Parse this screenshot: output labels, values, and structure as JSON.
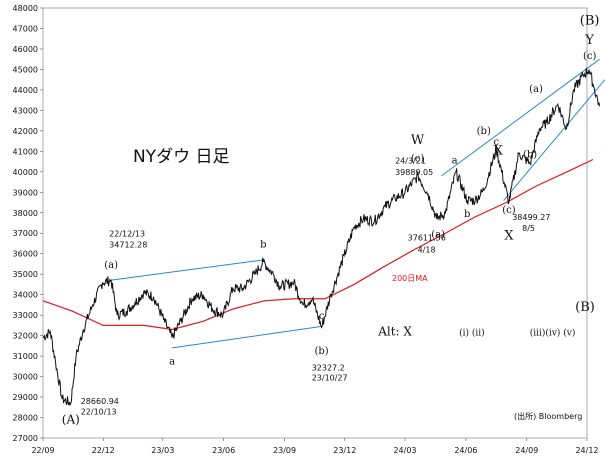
{
  "chart_data": {
    "type": "line",
    "title": "NYダウ 日足",
    "source": "(出所) Bloomberg",
    "ylim": [
      27000,
      48000
    ],
    "ytick_step": 1000,
    "x_range": [
      "2022-09-01",
      "2024-12-01"
    ],
    "x_tick_labels": [
      "22/09",
      "22/12",
      "23/03",
      "23/06",
      "23/09",
      "23/12",
      "24/03",
      "24/06",
      "24/09",
      "24/12"
    ],
    "x_tick_dates": [
      "2022-09-01",
      "2022-12-01",
      "2023-03-01",
      "2023-06-01",
      "2023-09-01",
      "2023-12-01",
      "2024-03-01",
      "2024-06-01",
      "2024-09-01",
      "2024-12-01"
    ],
    "grid": false,
    "colors": {
      "price": "#111111",
      "ma": "#e0191e",
      "channel": "#2a86d4"
    },
    "series": [
      {
        "kind": "price",
        "points": [
          [
            "2022-09-01",
            31900
          ],
          [
            "2022-09-12",
            32200
          ],
          [
            "2022-09-20",
            30700
          ],
          [
            "2022-09-30",
            28900
          ],
          [
            "2022-10-13",
            28700
          ],
          [
            "2022-10-21",
            31000
          ],
          [
            "2022-11-01",
            32300
          ],
          [
            "2022-11-15",
            33500
          ],
          [
            "2022-11-30",
            34600
          ],
          [
            "2022-12-13",
            34700
          ],
          [
            "2022-12-22",
            33000
          ],
          [
            "2023-01-05",
            33200
          ],
          [
            "2023-01-18",
            33600
          ],
          [
            "2023-01-31",
            34100
          ],
          [
            "2023-02-15",
            33900
          ],
          [
            "2023-03-02",
            32800
          ],
          [
            "2023-03-15",
            31900
          ],
          [
            "2023-03-28",
            32700
          ],
          [
            "2023-04-14",
            33800
          ],
          [
            "2023-05-01",
            34000
          ],
          [
            "2023-05-15",
            33300
          ],
          [
            "2023-05-31",
            33000
          ],
          [
            "2023-06-15",
            34300
          ],
          [
            "2023-06-30",
            34300
          ],
          [
            "2023-07-18",
            35000
          ],
          [
            "2023-07-31",
            35600
          ],
          [
            "2023-08-15",
            35000
          ],
          [
            "2023-08-25",
            34400
          ],
          [
            "2023-09-15",
            34600
          ],
          [
            "2023-09-29",
            33500
          ],
          [
            "2023-10-13",
            33800
          ],
          [
            "2023-10-27",
            32400
          ],
          [
            "2023-11-10",
            34000
          ],
          [
            "2023-11-30",
            35900
          ],
          [
            "2023-12-15",
            37300
          ],
          [
            "2023-12-29",
            37700
          ],
          [
            "2024-01-15",
            37600
          ],
          [
            "2024-01-31",
            38300
          ],
          [
            "2024-02-15",
            38700
          ],
          [
            "2024-03-01",
            39000
          ],
          [
            "2024-03-21",
            39800
          ],
          [
            "2024-04-05",
            38900
          ],
          [
            "2024-04-18",
            37700
          ],
          [
            "2024-05-01",
            38000
          ],
          [
            "2024-05-17",
            40000
          ],
          [
            "2024-06-03",
            38600
          ],
          [
            "2024-06-15",
            38600
          ],
          [
            "2024-06-28",
            39100
          ],
          [
            "2024-07-17",
            41100
          ],
          [
            "2024-08-05",
            38500
          ],
          [
            "2024-08-20",
            40900
          ],
          [
            "2024-09-06",
            40400
          ],
          [
            "2024-09-20",
            42100
          ],
          [
            "2024-10-01",
            42400
          ],
          [
            "2024-10-18",
            43300
          ],
          [
            "2024-10-31",
            42100
          ],
          [
            "2024-11-11",
            44000
          ],
          [
            "2024-11-25",
            44700
          ],
          [
            "2024-12-04",
            45000
          ],
          [
            "2024-12-10",
            44300
          ],
          [
            "2024-12-20",
            43200
          ]
        ]
      },
      {
        "kind": "ma",
        "name": "200日MA",
        "points": [
          [
            "2022-09-01",
            33700
          ],
          [
            "2022-10-15",
            33200
          ],
          [
            "2022-12-01",
            32500
          ],
          [
            "2023-02-01",
            32500
          ],
          [
            "2023-03-15",
            32300
          ],
          [
            "2023-05-01",
            32700
          ],
          [
            "2023-06-15",
            33300
          ],
          [
            "2023-08-01",
            33700
          ],
          [
            "2023-09-15",
            33800
          ],
          [
            "2023-11-01",
            33800
          ],
          [
            "2023-12-15",
            34500
          ],
          [
            "2024-01-31",
            35400
          ],
          [
            "2024-03-15",
            36200
          ],
          [
            "2024-05-01",
            37000
          ],
          [
            "2024-06-15",
            37800
          ],
          [
            "2024-08-01",
            38500
          ],
          [
            "2024-09-15",
            39300
          ],
          [
            "2024-11-01",
            40000
          ],
          [
            "2024-12-10",
            40600
          ]
        ]
      }
    ],
    "trendlines": [
      {
        "from": [
          "2022-12-13",
          34712
        ],
        "to": [
          "2023-08-01",
          35700
        ]
      },
      {
        "from": [
          "2023-03-15",
          31400
        ],
        "to": [
          "2023-10-27",
          32450
        ]
      },
      {
        "from": [
          "2024-04-25",
          39800
        ],
        "to": [
          "2024-12-20",
          45500
        ]
      },
      {
        "from": [
          "2024-07-28",
          38600
        ],
        "to": [
          "2024-12-28",
          44500
        ]
      }
    ],
    "annotations": [
      {
        "id": "label-A",
        "text": "(A)",
        "x": "2022-10-13",
        "y": 27700,
        "size": 12
      },
      {
        "id": "label-a-low",
        "text": "a",
        "x": "2023-03-15",
        "y": 30600,
        "size": 10
      },
      {
        "id": "label-b-high",
        "text": "b",
        "x": "2023-07-31",
        "y": 36300,
        "size": 10
      },
      {
        "id": "label-c-low",
        "text": "c",
        "x": "2023-10-27",
        "y": 32800,
        "size": 10
      },
      {
        "id": "label-a-paren",
        "text": "(a)",
        "x": "2022-12-13",
        "y": 35300,
        "size": 10
      },
      {
        "id": "label-b-paren",
        "text": "(b)",
        "x": "2023-10-27",
        "y": 31100,
        "size": 10
      },
      {
        "id": "label-W",
        "text": "W",
        "x": "2024-03-20",
        "y": 41350,
        "size": 13
      },
      {
        "id": "label-c-W",
        "text": "(c)",
        "x": "2024-03-20",
        "y": 40500,
        "size": 10
      },
      {
        "id": "label-a-2404",
        "text": "(a)",
        "x": "2024-04-20",
        "y": 36800,
        "size": 10
      },
      {
        "id": "label-a-240520",
        "text": "a",
        "x": "2024-05-15",
        "y": 40400,
        "size": 10
      },
      {
        "id": "label-b-2406",
        "text": "b",
        "x": "2024-06-03",
        "y": 37800,
        "size": 10
      },
      {
        "id": "label-b-paren-2406",
        "text": "(b)",
        "x": "2024-06-28",
        "y": 41850,
        "size": 10
      },
      {
        "id": "label-c-2407",
        "text": "c",
        "x": "2024-07-17",
        "y": 41300,
        "size": 10
      },
      {
        "id": "label-X",
        "text": "X",
        "x": "2024-07-20",
        "y": 40850,
        "size": 13
      },
      {
        "id": "label-c-X",
        "text": "(c)",
        "x": "2024-08-05",
        "y": 38000,
        "size": 10
      },
      {
        "id": "label-X-low",
        "text": "X",
        "x": "2024-08-05",
        "y": 36700,
        "size": 13
      },
      {
        "id": "label-b-paren-2409",
        "text": "(b)",
        "x": "2024-09-06",
        "y": 40700,
        "size": 10
      },
      {
        "id": "label-a-paren-2409",
        "text": "(a)",
        "x": "2024-09-15",
        "y": 43900,
        "size": 10
      },
      {
        "id": "label-c-paren-Y",
        "text": "(c)",
        "x": "2024-12-05",
        "y": 45500,
        "size": 10
      },
      {
        "id": "label-Y",
        "text": "Y",
        "x": "2024-12-05",
        "y": 46250,
        "size": 13
      },
      {
        "id": "label-B-top",
        "text": "(B)",
        "x": "2024-12-05",
        "y": 47200,
        "size": 13
      },
      {
        "id": "label-B-mid",
        "text": "(B)",
        "x": "2024-11-28",
        "y": 33200,
        "size": 13
      },
      {
        "id": "label-altX",
        "text": "Alt: X",
        "x": "2024-02-15",
        "y": 32000,
        "size": 12
      },
      {
        "id": "label-i-ii",
        "text": "(i) (ii)",
        "x": "2024-06-10",
        "y": 32000,
        "size": 9
      },
      {
        "id": "label-iii-iv-v",
        "text": "(iii)(iv) (v)",
        "x": "2024-10-10",
        "y": 32000,
        "size": 9
      }
    ],
    "data_labels": [
      {
        "id": "dl-low-2210-val",
        "text": "28660.94",
        "x": "2022-10-28",
        "y": 28650
      },
      {
        "id": "dl-low-2210-date",
        "text": "22/10/13",
        "x": "2022-10-28",
        "y": 28150
      },
      {
        "id": "dl-high-2212-date",
        "text": "22/12/13",
        "x": "2022-12-10",
        "y": 36850
      },
      {
        "id": "dl-high-2212-val",
        "text": "34712.28",
        "x": "2022-12-10",
        "y": 36300
      },
      {
        "id": "dl-low-2310-val",
        "text": "32327.2",
        "x": "2023-10-12",
        "y": 30300
      },
      {
        "id": "dl-low-2310-date",
        "text": "23/10/27",
        "x": "2023-10-12",
        "y": 29800
      },
      {
        "id": "dl-high-2403-date",
        "text": "24/3/21",
        "x": "2024-02-15",
        "y": 40400
      },
      {
        "id": "dl-high-2403-val",
        "text": "39889.05",
        "x": "2024-02-15",
        "y": 39850
      },
      {
        "id": "dl-low-2404-val",
        "text": "37611.56",
        "x": "2024-03-05",
        "y": 36650
      },
      {
        "id": "dl-low-2404-date",
        "text": "4/18",
        "x": "2024-03-20",
        "y": 36050
      },
      {
        "id": "dl-low-2408-val",
        "text": "38499.27",
        "x": "2024-08-10",
        "y": 37650
      },
      {
        "id": "dl-low-2408-date",
        "text": "8/5",
        "x": "2024-08-25",
        "y": 37100
      }
    ]
  }
}
